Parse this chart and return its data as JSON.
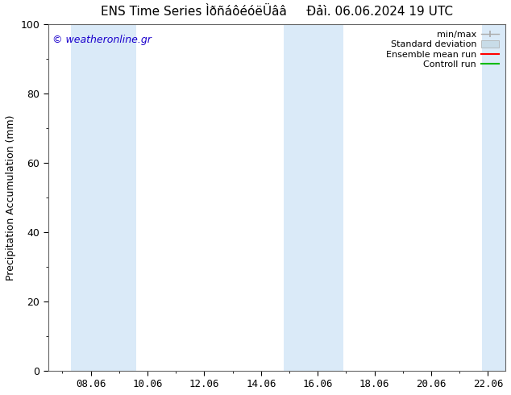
{
  "title_part1": "ENS Time Series ÌðñáôéóëÜââ",
  "title_part2": "Đảì. 06.06.2024 19 UTC",
  "ylabel": "Precipitation Accumulation (mm)",
  "watermark": "© weatheronline.gr",
  "watermark_color": "#1a00cc",
  "ylim": [
    0,
    100
  ],
  "yticks": [
    0,
    20,
    40,
    60,
    80,
    100
  ],
  "xtick_labels": [
    "08.06",
    "10.06",
    "12.06",
    "14.06",
    "16.06",
    "18.06",
    "20.06",
    "22.06"
  ],
  "bg_color": "#ffffff",
  "plot_bg_color": "#ffffff",
  "shaded_band_color": "#daeaf8",
  "shaded_bands": [
    {
      "x_start": 7.3,
      "x_end": 9.6
    },
    {
      "x_start": 14.8,
      "x_end": 16.9
    },
    {
      "x_start": 21.8,
      "x_end": 22.6
    }
  ],
  "x_min": 6.5,
  "x_max": 22.6,
  "x_ticks": [
    8,
    10,
    12,
    14,
    16,
    18,
    20,
    22
  ],
  "minmax_color": "#aaaaaa",
  "stddev_color": "#c8dce8",
  "ensemble_color": "#ff0000",
  "control_color": "#00bb00",
  "title_fontsize": 11,
  "label_fontsize": 9,
  "tick_fontsize": 9,
  "legend_fontsize": 8,
  "watermark_fontsize": 9
}
